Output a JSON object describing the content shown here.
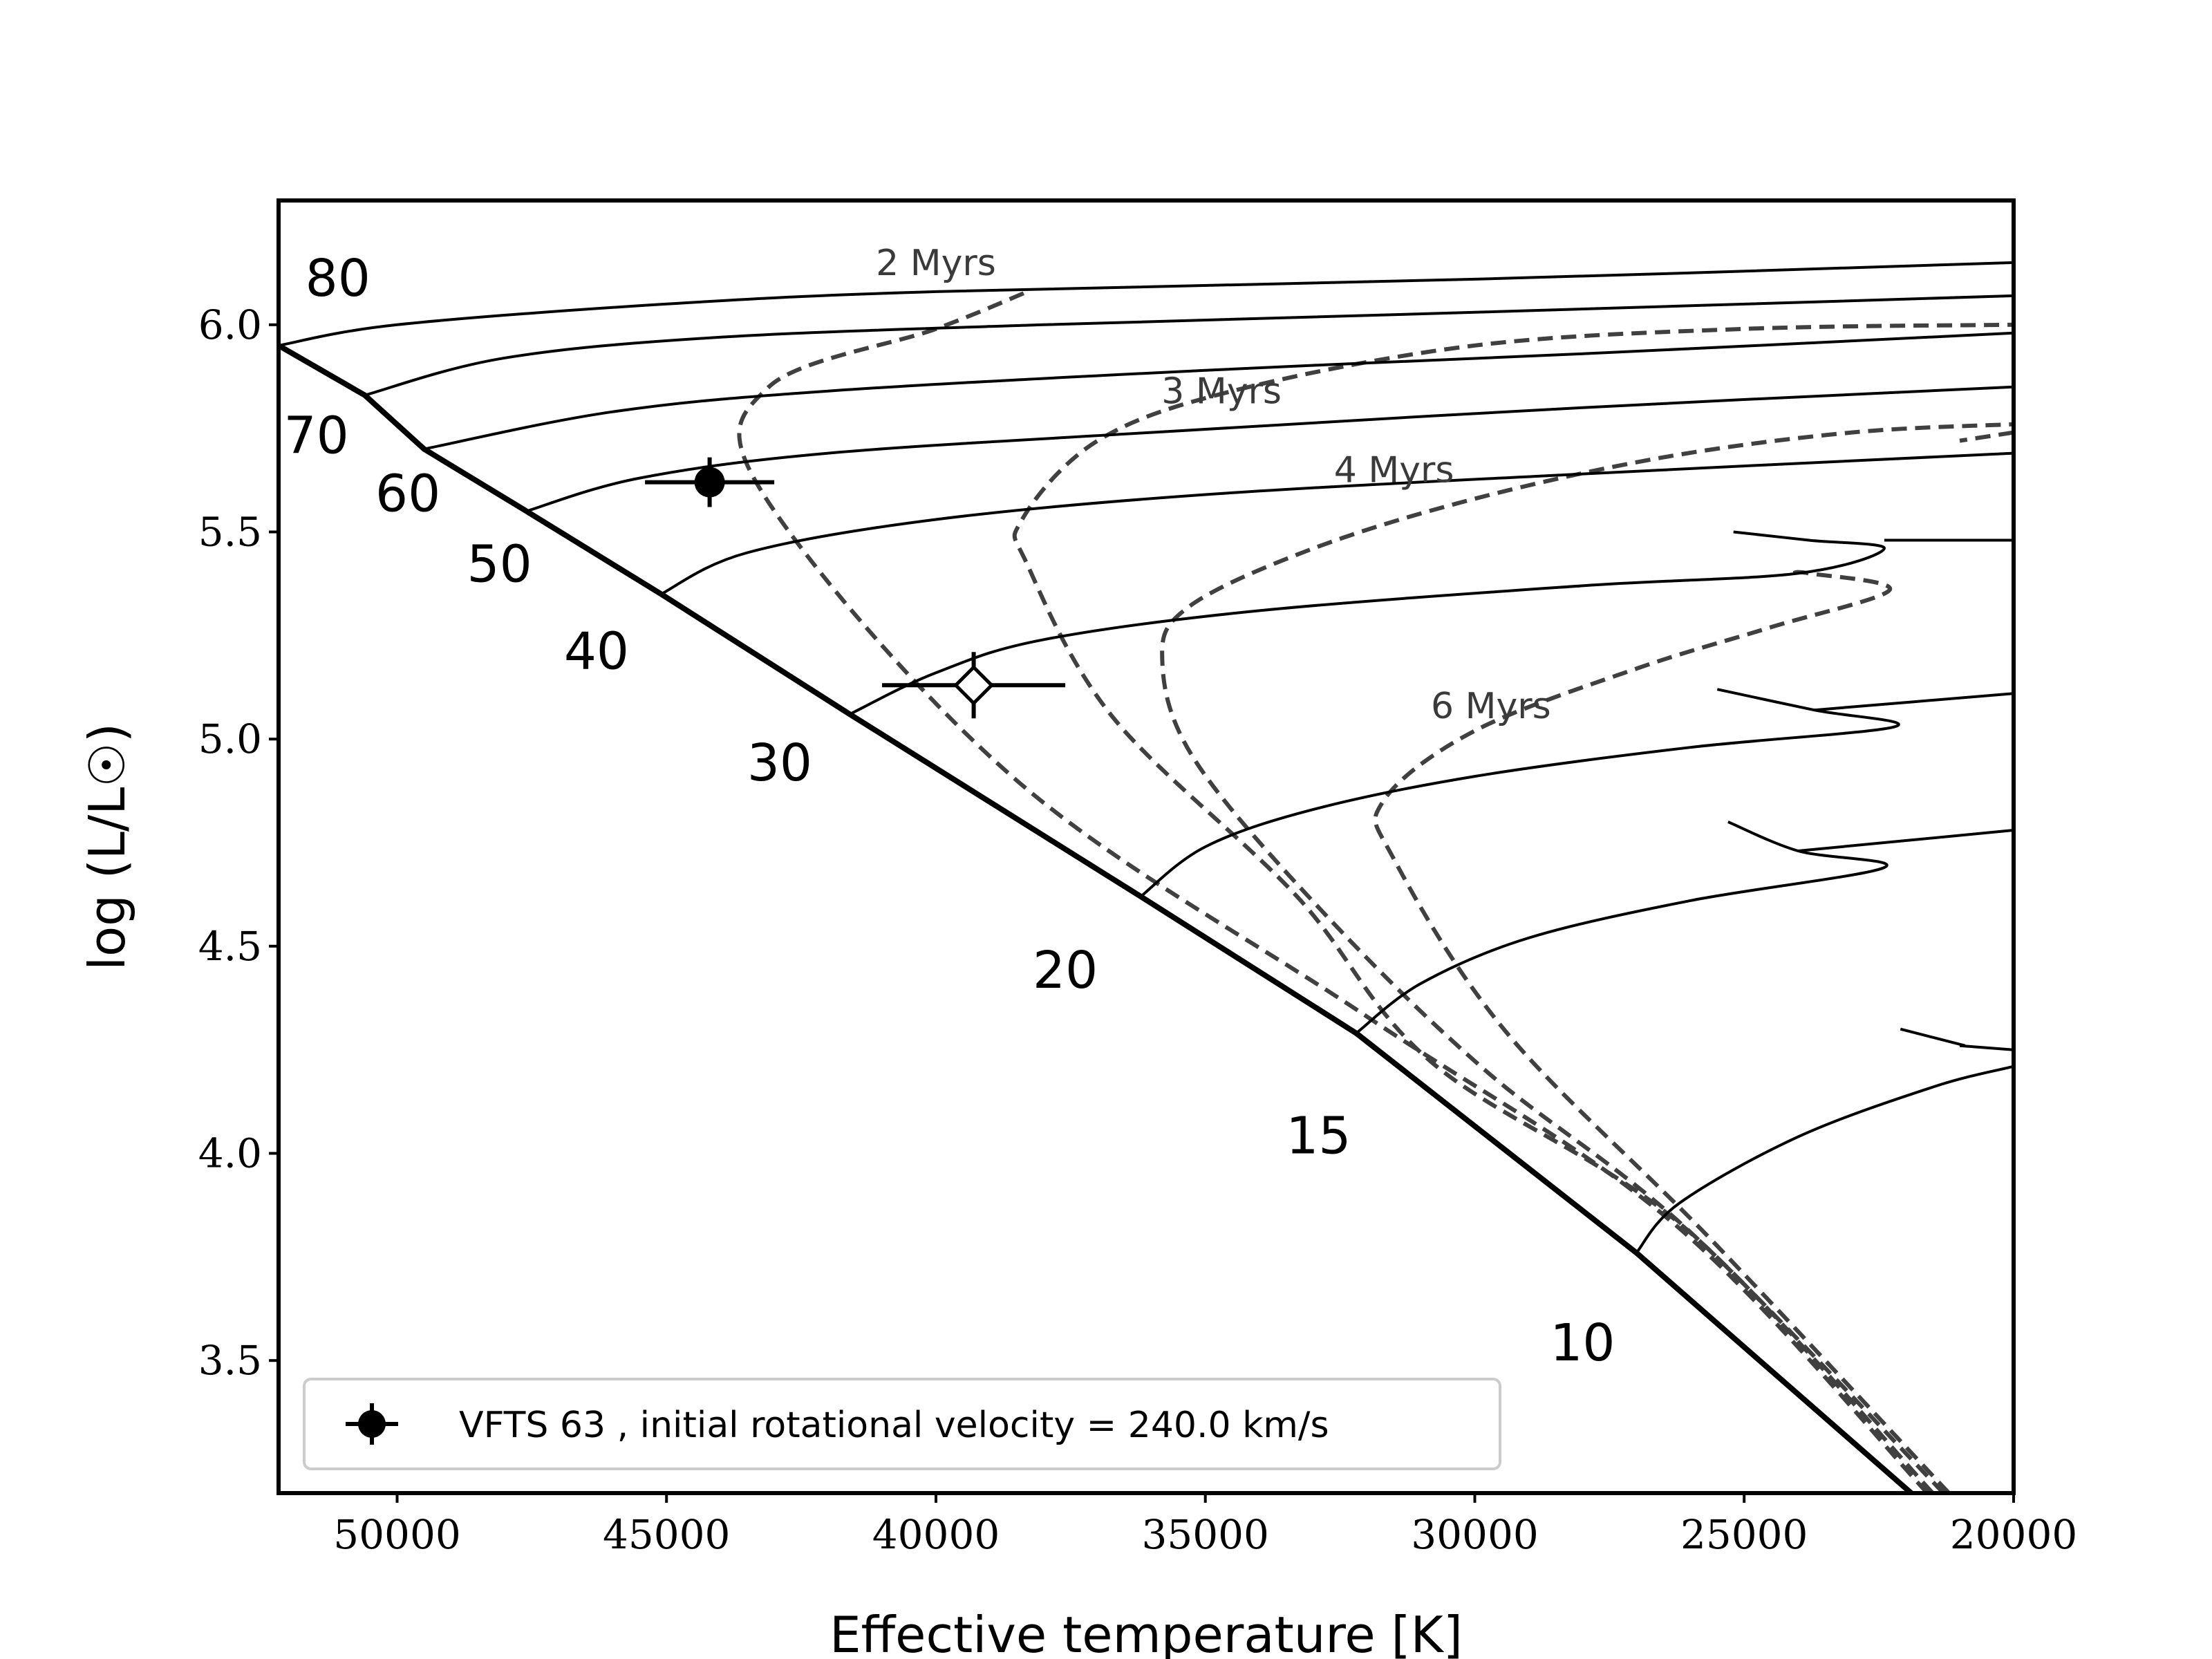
{
  "chart_data": {
    "type": "line",
    "xlabel": "Effective temperature [K]",
    "ylabel": "log (L/L☉)",
    "xlim": [
      52200,
      20000
    ],
    "ylim": [
      3.18,
      6.3
    ],
    "x_reversed": true,
    "grid": false,
    "legend_placement": "lower-left",
    "xticks": [
      {
        "value": 50000,
        "label": "50000"
      },
      {
        "value": 45000,
        "label": "45000"
      },
      {
        "value": 40000,
        "label": "40000"
      },
      {
        "value": 35000,
        "label": "35000"
      },
      {
        "value": 30000,
        "label": "30000"
      },
      {
        "value": 25000,
        "label": "25000"
      },
      {
        "value": 20000,
        "label": "20000"
      }
    ],
    "yticks": [
      {
        "value": 3.5,
        "label": "3.5"
      },
      {
        "value": 4.0,
        "label": "4.0"
      },
      {
        "value": 4.5,
        "label": "4.5"
      },
      {
        "value": 5.0,
        "label": "5.0"
      },
      {
        "value": 5.5,
        "label": "5.5"
      },
      {
        "value": 6.0,
        "label": "6.0"
      }
    ],
    "zams": [
      [
        52200,
        5.95
      ],
      [
        50600,
        5.83
      ],
      [
        49500,
        5.7
      ],
      [
        47600,
        5.55
      ],
      [
        45100,
        5.35
      ],
      [
        41600,
        5.06
      ],
      [
        36200,
        4.62
      ],
      [
        32200,
        4.29
      ],
      [
        27000,
        3.76
      ],
      [
        21900,
        3.18
      ]
    ],
    "tracks": [
      {
        "mass_label": "80",
        "label_at": [
          51100,
          6.07
        ],
        "points": [
          [
            52200,
            5.95
          ],
          [
            50000,
            6.0
          ],
          [
            45000,
            6.05
          ],
          [
            40000,
            6.08
          ],
          [
            30000,
            6.11
          ],
          [
            20000,
            6.15
          ]
        ]
      },
      {
        "mass_label": "70",
        "label_at": [
          51500,
          5.69
        ],
        "points": [
          [
            50600,
            5.83
          ],
          [
            48000,
            5.92
          ],
          [
            44000,
            5.97
          ],
          [
            38000,
            6.0
          ],
          [
            30000,
            6.03
          ],
          [
            20000,
            6.07
          ]
        ]
      },
      {
        "mass_label": "60",
        "label_at": [
          49800,
          5.55
        ],
        "points": [
          [
            49500,
            5.7
          ],
          [
            46000,
            5.79
          ],
          [
            42000,
            5.84
          ],
          [
            35000,
            5.89
          ],
          [
            28000,
            5.93
          ],
          [
            20000,
            5.98
          ]
        ]
      },
      {
        "mass_label": "50",
        "label_at": [
          48100,
          5.38
        ],
        "points": [
          [
            47600,
            5.55
          ],
          [
            45500,
            5.63
          ],
          [
            42000,
            5.69
          ],
          [
            36000,
            5.74
          ],
          [
            28000,
            5.8
          ],
          [
            20000,
            5.85
          ]
        ]
      },
      {
        "mass_label": "40",
        "label_at": [
          46300,
          5.17
        ],
        "points": [
          [
            45100,
            5.35
          ],
          [
            43500,
            5.45
          ],
          [
            40000,
            5.53
          ],
          [
            35000,
            5.59
          ],
          [
            28000,
            5.64
          ],
          [
            20000,
            5.69
          ]
        ]
      },
      {
        "mass_label": "30",
        "label_at": [
          42900,
          4.9
        ],
        "points": [
          [
            41600,
            5.06
          ],
          [
            40000,
            5.16
          ],
          [
            38000,
            5.24
          ],
          [
            34000,
            5.31
          ],
          [
            28000,
            5.37
          ],
          [
            24000,
            5.4
          ],
          [
            22400,
            5.46
          ],
          [
            23800,
            5.48
          ],
          [
            25200,
            5.5
          ]
        ]
      },
      {
        "mass_label": "",
        "label_at": null,
        "points": [
          [
            22400,
            5.48
          ],
          [
            20000,
            5.48
          ]
        ]
      },
      {
        "mass_label": "20",
        "label_at": [
          37600,
          4.4
        ],
        "points": [
          [
            36200,
            4.62
          ],
          [
            35000,
            4.74
          ],
          [
            33000,
            4.83
          ],
          [
            30000,
            4.91
          ],
          [
            26000,
            4.98
          ],
          [
            22200,
            5.03
          ],
          [
            23700,
            5.07
          ],
          [
            25500,
            5.12
          ]
        ]
      },
      {
        "mass_label": "",
        "label_at": null,
        "points": [
          [
            23700,
            5.07
          ],
          [
            20000,
            5.11
          ]
        ]
      },
      {
        "mass_label": "15",
        "label_at": [
          32900,
          4.0
        ],
        "points": [
          [
            32200,
            4.29
          ],
          [
            31000,
            4.41
          ],
          [
            29000,
            4.52
          ],
          [
            26000,
            4.61
          ],
          [
            22400,
            4.69
          ],
          [
            24000,
            4.73
          ],
          [
            25300,
            4.8
          ]
        ]
      },
      {
        "mass_label": "",
        "label_at": null,
        "points": [
          [
            24000,
            4.73
          ],
          [
            20000,
            4.78
          ]
        ]
      },
      {
        "mass_label": "10",
        "label_at": [
          28000,
          3.5
        ],
        "points": [
          [
            27000,
            3.76
          ],
          [
            26200,
            3.88
          ],
          [
            24000,
            4.04
          ],
          [
            21500,
            4.16
          ],
          [
            20000,
            4.21
          ]
        ]
      },
      {
        "mass_label": "",
        "label_at": null,
        "points": [
          [
            21000,
            4.26
          ],
          [
            20000,
            4.25
          ]
        ]
      },
      {
        "mass_label": "",
        "label_at": null,
        "points": [
          [
            22100,
            4.3
          ],
          [
            20900,
            4.26
          ]
        ]
      }
    ],
    "isochrones": [
      {
        "label": "2 Myrs",
        "label_at": [
          40000,
          6.12
        ],
        "points": [
          [
            21600,
            3.18
          ],
          [
            26300,
            3.83
          ],
          [
            32000,
            4.33
          ],
          [
            38500,
            4.9
          ],
          [
            43200,
            5.59
          ],
          [
            43100,
            5.85
          ],
          [
            40000,
            5.99
          ],
          [
            38300,
            6.08
          ]
        ]
      },
      {
        "label": "3 Myrs",
        "label_at": [
          34700,
          5.81
        ],
        "points": [
          [
            21500,
            3.18
          ],
          [
            26100,
            3.82
          ],
          [
            30800,
            4.22
          ],
          [
            33300,
            4.62
          ],
          [
            36700,
            5.05
          ],
          [
            38300,
            5.42
          ],
          [
            38400,
            5.53
          ],
          [
            37000,
            5.72
          ],
          [
            34500,
            5.84
          ],
          [
            30000,
            5.95
          ],
          [
            25000,
            5.99
          ],
          [
            20000,
            6.0
          ]
        ]
      },
      {
        "label": "4 Myrs",
        "label_at": [
          31500,
          5.62
        ],
        "points": [
          [
            21300,
            3.18
          ],
          [
            26000,
            3.81
          ],
          [
            29800,
            4.2
          ],
          [
            32800,
            4.58
          ],
          [
            35200,
            4.95
          ],
          [
            35800,
            5.19
          ],
          [
            35300,
            5.32
          ],
          [
            33000,
            5.46
          ],
          [
            30000,
            5.58
          ],
          [
            26500,
            5.68
          ],
          [
            23000,
            5.74
          ],
          [
            20000,
            5.76
          ]
        ]
      },
      {
        "label": "",
        "label_at": null,
        "points": [
          [
            20000,
            5.74
          ],
          [
            21000,
            5.72
          ]
        ]
      },
      {
        "label": "6 Myrs",
        "label_at": [
          29700,
          5.05
        ],
        "points": [
          [
            21200,
            3.18
          ],
          [
            25600,
            3.79
          ],
          [
            29400,
            4.29
          ],
          [
            31500,
            4.71
          ],
          [
            31700,
            4.85
          ],
          [
            30000,
            5.02
          ],
          [
            27000,
            5.17
          ],
          [
            24500,
            5.27
          ],
          [
            22300,
            5.36
          ],
          [
            23800,
            5.4
          ],
          [
            24100,
            5.4
          ]
        ]
      }
    ],
    "points": [
      {
        "name": "VFTS 63 , initial rotational velocity = 240.0 km/s",
        "teff": 44200,
        "logL": 5.62,
        "xerr": 1200,
        "yerr": 0.06,
        "marker": "filled-circle"
      },
      {
        "name": "",
        "teff": 39300,
        "logL": 5.13,
        "xerr": 1700,
        "yerr": 0.08,
        "marker": "open-diamond"
      }
    ],
    "colors": {
      "tracks": "#000000",
      "isochrones": "#404040",
      "markers": "#000000"
    }
  }
}
